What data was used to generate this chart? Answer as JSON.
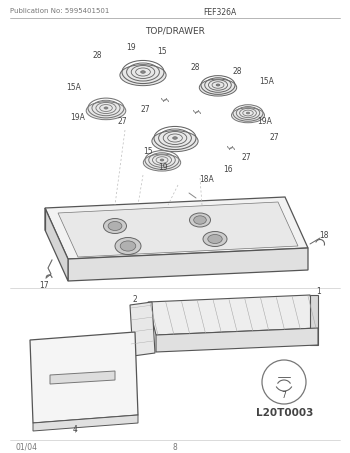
{
  "title_left": "Publication No: 5995401501",
  "title_center": "FEF326A",
  "subtitle": "TOP/DRAWER",
  "footer_left": "01/04",
  "footer_center": "8",
  "watermark": "L20T0003",
  "bg_color": "#ffffff",
  "line_color": "#999999",
  "text_color": "#666666",
  "dark_color": "#444444",
  "fig_width": 3.5,
  "fig_height": 4.53,
  "dpi": 100
}
